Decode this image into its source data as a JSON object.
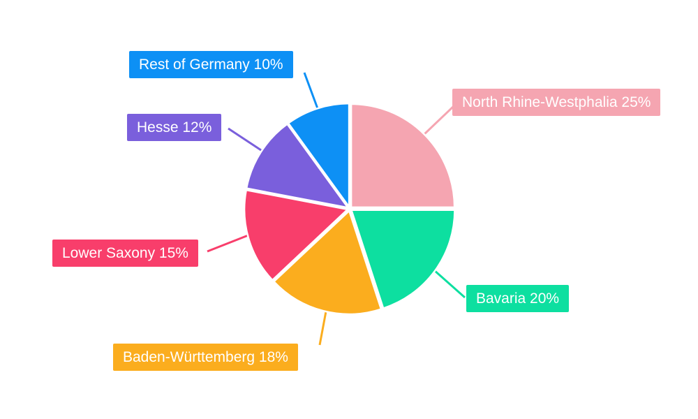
{
  "chart_data": {
    "type": "pie",
    "title": "",
    "categories": [
      "North Rhine-Westphalia",
      "Bavaria",
      "Baden-Württemberg",
      "Lower Saxony",
      "Hesse",
      "Rest of Germany"
    ],
    "values": [
      25,
      20,
      18,
      15,
      12,
      10
    ],
    "unit": "%",
    "labels": [
      "North Rhine-Westphalia 25%",
      "Bavaria 20%",
      "Baden-Württemberg 18%",
      "Lower Saxony 15%",
      "Hesse 12%",
      "Rest of Germany 10%"
    ],
    "colors": [
      "#F5A5B1",
      "#0DDFA0",
      "#FBAD1E",
      "#F83E6B",
      "#7A5FDC",
      "#0D90F5"
    ],
    "start_angle_deg": 0,
    "direction": "clockwise",
    "legend_position": "callout-labels",
    "background": "#FFFFFF",
    "label_text_color": "#FFFFFF"
  }
}
